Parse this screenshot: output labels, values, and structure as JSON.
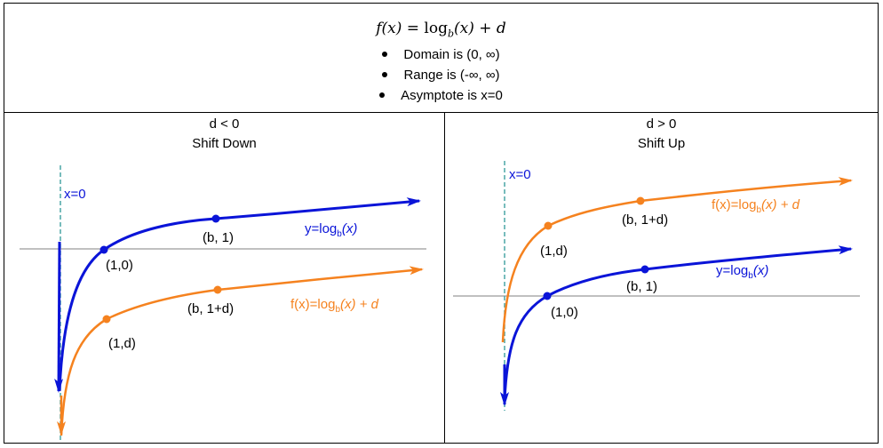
{
  "header": {
    "formula": {
      "lhs": "f(x) = ",
      "log": "log",
      "base": "b",
      "rhs": "(x) + d"
    },
    "bullets": [
      "Domain is (0, ∞)",
      "Range is (-∞, ∞)",
      "Asymptote is x=0"
    ]
  },
  "panels": [
    {
      "condition": "d < 0",
      "title": "Shift Down",
      "asymptote_label": "x=0",
      "blue_points": [
        {
          "label": "(1,0)"
        },
        {
          "label": "(b, 1)"
        }
      ],
      "orange_points": [
        {
          "label": "(1,d)"
        },
        {
          "label": "(b, 1+d)"
        }
      ],
      "blue_curve_label": {
        "prefix": "y=log",
        "base": "b",
        "arg": "(x)"
      },
      "orange_curve_label": {
        "prefix": "f(x)=log",
        "base": "b",
        "arg": "(x) + d"
      }
    },
    {
      "condition": "d > 0",
      "title": "Shift Up",
      "asymptote_label": "x=0",
      "blue_points": [
        {
          "label": "(1,0)"
        },
        {
          "label": "(b, 1)"
        }
      ],
      "orange_points": [
        {
          "label": "(1,d)"
        },
        {
          "label": "(b, 1+d)"
        }
      ],
      "blue_curve_label": {
        "prefix": "y=log",
        "base": "b",
        "arg": "(x)"
      },
      "orange_curve_label": {
        "prefix": "f(x)=log",
        "base": "b",
        "arg": "(x) + d"
      }
    }
  ],
  "colors": {
    "blue_curve": "#0a14d8",
    "orange_curve": "#f5821f",
    "asymptote": "#4aa6a6",
    "axis": "#808080"
  }
}
